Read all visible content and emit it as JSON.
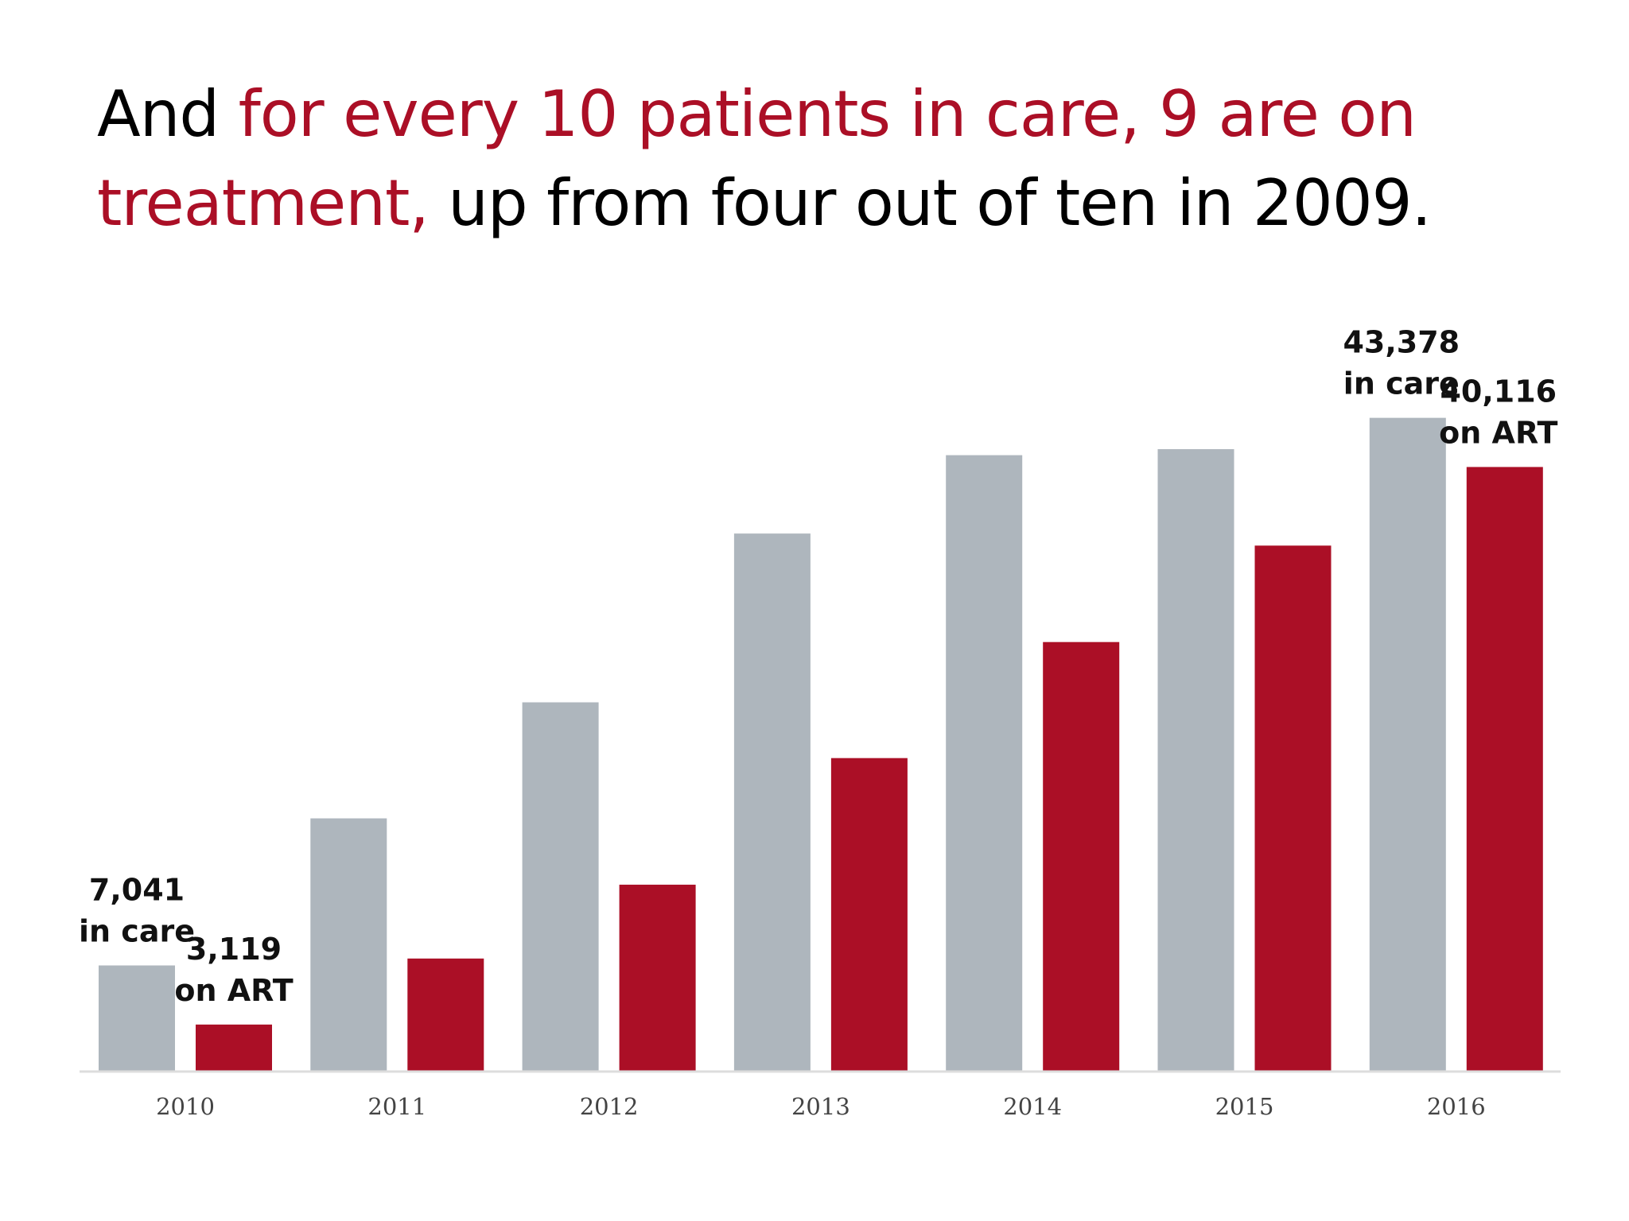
{
  "headline": {
    "part1": "And ",
    "part2": "for every 10 patients in care, 9 are on treatment,",
    "part3": " up from four out of ten in 2009."
  },
  "colors": {
    "in_care": "#aeb6bd",
    "on_art": "#ab0f26",
    "highlight": "#ab0f26",
    "axis": "#dddddd",
    "tick_text": "#444444"
  },
  "chart_data": {
    "type": "bar",
    "categories": [
      "2010",
      "2011",
      "2012",
      "2013",
      "2014",
      "2015",
      "2016"
    ],
    "series": [
      {
        "name": "in care",
        "values": [
          7041,
          16800,
          24500,
          35700,
          40900,
          41300,
          43378
        ]
      },
      {
        "name": "on ART",
        "values": [
          3119,
          7500,
          12400,
          20800,
          28500,
          34900,
          40116
        ]
      }
    ],
    "ylim": [
      0,
      48000
    ],
    "grid": false,
    "legend": "none",
    "annotations": [
      {
        "value": "7,041",
        "note": "in care"
      },
      {
        "value": "3,119",
        "note": "on ART"
      },
      {
        "value": "43,378",
        "note": "in care"
      },
      {
        "value": "40,116",
        "note": "on ART"
      }
    ]
  }
}
